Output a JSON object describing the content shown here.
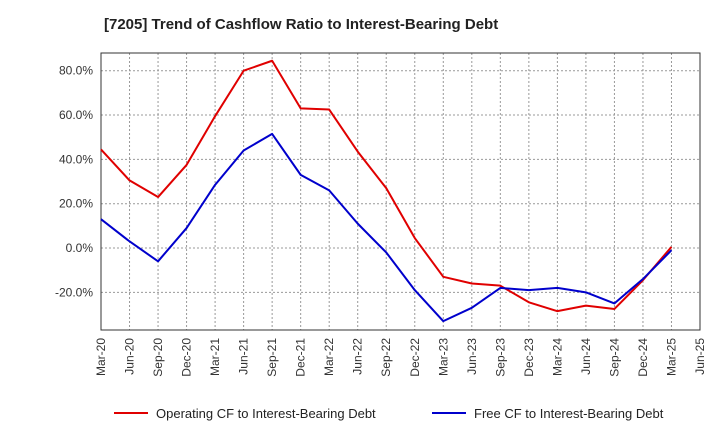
{
  "title": "[7205]  Trend of Cashflow Ratio to Interest-Bearing Debt",
  "chart_data": {
    "type": "line",
    "title": "[7205]  Trend of Cashflow Ratio to Interest-Bearing Debt",
    "xlabel": "",
    "ylabel": "",
    "categories": [
      "Mar-20",
      "Jun-20",
      "Sep-20",
      "Dec-20",
      "Mar-21",
      "Jun-21",
      "Sep-21",
      "Dec-21",
      "Mar-22",
      "Jun-22",
      "Sep-22",
      "Dec-22",
      "Mar-23",
      "Jun-23",
      "Sep-23",
      "Dec-23",
      "Mar-24",
      "Jun-24",
      "Sep-24",
      "Dec-24",
      "Mar-25",
      "Jun-25"
    ],
    "yticks": [
      "-20.0%",
      "0.0%",
      "20.0%",
      "40.0%",
      "60.0%",
      "80.0%"
    ],
    "ytick_values": [
      -20,
      0,
      20,
      40,
      60,
      80
    ],
    "ylim": [
      -37,
      88
    ],
    "grid": true,
    "legend_position": "bottom",
    "series": [
      {
        "name": "Operating CF to Interest-Bearing Debt",
        "color": "#e00000",
        "values": [
          44.5,
          30.5,
          23.0,
          37.5,
          59.5,
          80.0,
          84.5,
          63.0,
          62.5,
          43.5,
          27.0,
          4.5,
          -13.0,
          -16.0,
          -17.0,
          -24.5,
          -28.5,
          -26.0,
          -27.5,
          -14.5,
          0.5,
          null
        ]
      },
      {
        "name": "Free CF to Interest-Bearing Debt",
        "color": "#0000cc",
        "values": [
          13.0,
          3.0,
          -6.0,
          9.0,
          28.5,
          44.0,
          51.5,
          33.0,
          26.0,
          11.0,
          -2.0,
          -19.0,
          -33.0,
          -27.0,
          -18.0,
          -19.0,
          -18.0,
          -20.0,
          -25.0,
          -14.0,
          -1.0,
          null
        ]
      }
    ]
  }
}
